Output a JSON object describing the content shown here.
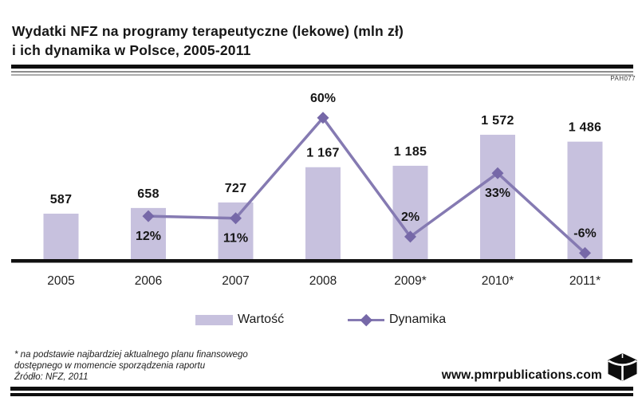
{
  "meta": {
    "doc_code": "PAH077"
  },
  "header": {
    "title_line1": "Wydatki NFZ na programy terapeutyczne (lekowe) (mln zł)",
    "title_line2": "i ich dynamika w Polsce, 2005-2011"
  },
  "chart_data": {
    "type": "bar",
    "subtype": "combo-bar-line",
    "title": "Wydatki NFZ na programy terapeutyczne (lekowe) (mln zł) i ich dynamika w Polsce, 2005-2011",
    "categories": [
      "2005",
      "2006",
      "2007",
      "2008",
      "2009*",
      "2010*",
      "2011*"
    ],
    "series": [
      {
        "name": "Wartość",
        "type": "bar",
        "unit": "mln zł",
        "values": [
          587,
          658,
          727,
          1167,
          1185,
          1572,
          1486
        ],
        "labels": [
          "587",
          "658",
          "727",
          "1 167",
          "1 185",
          "1 572",
          "1 486"
        ]
      },
      {
        "name": "Dynamika",
        "type": "line",
        "unit": "%",
        "values": [
          null,
          12,
          11,
          60,
          2,
          33,
          -6
        ],
        "labels": [
          "",
          "12%",
          "11%",
          "60%",
          "2%",
          "33%",
          "-6%"
        ],
        "label_placement": [
          "",
          "below",
          "below",
          "above",
          "above",
          "below",
          "above"
        ]
      }
    ],
    "ylim_bar": [
      0,
      1800
    ],
    "ylim_pct": [
      -20,
      80
    ],
    "grid": false,
    "y_axis_visible": false,
    "legend_position": "bottom"
  },
  "legend": {
    "bar_label": "Wartość",
    "line_label": "Dynamika"
  },
  "footer": {
    "footnote_line1": "* na podstawie najbardziej aktualnego planu finansowego",
    "footnote_line2": "dostępnego w momencie sporządzenia raportu",
    "footnote_line3": "Źródło: NFZ, 2011",
    "website": "www.pmrpublications.com"
  },
  "colors": {
    "bar": "#c7c1de",
    "line": "#857ab2",
    "marker": "#7668a8",
    "text": "#161616",
    "axis": "#101010"
  }
}
